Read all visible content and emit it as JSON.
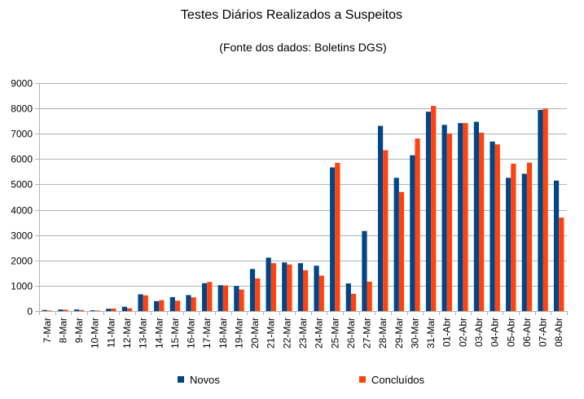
{
  "chart_data": {
    "type": "bar",
    "title": "Testes Diários Realizados a Suspeitos",
    "subtitle": "(Fonte dos dados: Boletins DGS)",
    "xlabel": "",
    "ylabel": "",
    "ylim": [
      0,
      9000
    ],
    "yticks": [
      0,
      1000,
      2000,
      3000,
      4000,
      5000,
      6000,
      7000,
      8000,
      9000
    ],
    "grid": true,
    "legend": "bottom",
    "categories": [
      "7-Mar",
      "8-Mar",
      "9-Mar",
      "10-Mar",
      "11-Mar",
      "12-Mar",
      "13-Mar",
      "14-Mar",
      "15-Mar",
      "16-Mar",
      "17-Mar",
      "18-Mar",
      "19-Mar",
      "20-Mar",
      "21-Mar",
      "22-Mar",
      "23-Mar",
      "24-Mar",
      "25-Mar",
      "26-Mar",
      "27-Mar",
      "28-Mar",
      "29-Mar",
      "30-Mar",
      "31-Mar",
      "01-Abr",
      "02-Abr",
      "03-Abr",
      "04-Abr",
      "05-Abr",
      "06-Abr",
      "07-Abr",
      "08-Abr"
    ],
    "series": [
      {
        "name": "Novos",
        "color": "#004586",
        "values": [
          40,
          60,
          60,
          30,
          90,
          170,
          660,
          390,
          550,
          630,
          1100,
          1020,
          990,
          1660,
          2110,
          1920,
          1890,
          1790,
          5670,
          1090,
          3160,
          7310,
          5260,
          6150,
          7870,
          7350,
          7420,
          7470,
          6690,
          5260,
          5420,
          7940,
          5150
        ]
      },
      {
        "name": "Concluídos",
        "color": "#ff420e",
        "values": [
          20,
          50,
          40,
          20,
          100,
          110,
          620,
          430,
          410,
          540,
          1150,
          1010,
          850,
          1290,
          1890,
          1840,
          1610,
          1400,
          5850,
          680,
          1160,
          6350,
          4700,
          6810,
          8100,
          7010,
          7420,
          7040,
          6580,
          5820,
          5860,
          7990,
          3690
        ]
      }
    ]
  }
}
